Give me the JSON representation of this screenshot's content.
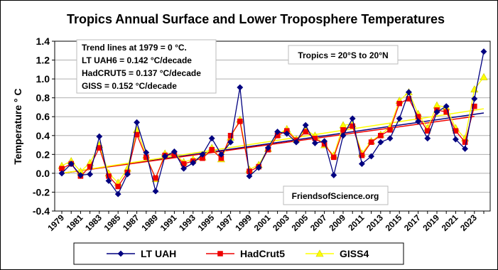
{
  "chart_data": {
    "type": "line",
    "title": "Tropics Annual Surface and Lower Troposphere Temperatures",
    "y_label": "Temperature  ° C",
    "annotations": [
      "Trend lines at 1979 = 0 °C.",
      "LT UAH6 = 0.142 °C/decade",
      "HadCRUT5 = 0.137 °C/decade",
      "GISS = 0.152 °C/decade"
    ],
    "region_note": "Tropics = 20°S to 20°N",
    "source": "FriendsofScience.org",
    "categories": [
      "1979",
      null,
      "1981",
      null,
      "1983",
      null,
      "1985",
      null,
      "1987",
      null,
      "1989",
      null,
      "1991",
      null,
      "1993",
      null,
      "1995",
      null,
      "1997",
      null,
      "1999",
      null,
      "2001",
      null,
      "2003",
      null,
      "2005",
      null,
      "2007",
      null,
      "2009",
      null,
      "2011",
      null,
      "2013",
      null,
      "2015",
      null,
      "2017",
      null,
      "2019",
      null,
      "2021",
      null,
      "2023",
      null
    ],
    "series": [
      {
        "name": "LT UAH",
        "color": "#000080",
        "marker": "diamond",
        "trend_per_decade": 0.142,
        "values": [
          0.0,
          0.1,
          -0.02,
          -0.01,
          0.39,
          -0.08,
          -0.22,
          -0.01,
          0.54,
          0.22,
          -0.19,
          0.18,
          0.23,
          0.05,
          0.11,
          0.2,
          0.37,
          0.2,
          0.33,
          0.91,
          -0.03,
          0.06,
          0.27,
          0.44,
          0.42,
          0.33,
          0.51,
          0.32,
          0.34,
          -0.02,
          0.4,
          0.58,
          0.1,
          0.18,
          0.33,
          0.37,
          0.58,
          0.86,
          0.55,
          0.37,
          0.65,
          0.71,
          0.36,
          0.26,
          0.79,
          1.29
        ]
      },
      {
        "name": "HadCrut5",
        "color": "#ee0000",
        "marker": "square",
        "trend_per_decade": 0.137,
        "values": [
          0.05,
          0.1,
          -0.03,
          0.07,
          0.27,
          -0.03,
          -0.14,
          0.01,
          0.41,
          0.17,
          -0.05,
          0.19,
          0.2,
          0.1,
          0.13,
          0.16,
          0.25,
          0.16,
          0.4,
          0.55,
          0.02,
          0.07,
          0.25,
          0.4,
          0.45,
          0.35,
          0.44,
          0.37,
          0.31,
          0.17,
          0.46,
          0.5,
          0.19,
          0.33,
          0.4,
          0.46,
          0.74,
          0.79,
          0.6,
          0.45,
          0.67,
          0.65,
          0.45,
          0.33,
          0.71,
          null
        ]
      },
      {
        "name": "GISS4",
        "color": "#ffff00",
        "marker": "triangle",
        "trend_per_decade": 0.152,
        "values": [
          0.08,
          0.13,
          0.02,
          0.11,
          0.3,
          0.0,
          -0.1,
          0.05,
          0.46,
          0.19,
          -0.06,
          0.21,
          0.21,
          0.12,
          0.15,
          0.17,
          0.27,
          0.15,
          0.38,
          0.57,
          0.04,
          0.09,
          0.26,
          0.41,
          0.47,
          0.36,
          0.46,
          0.4,
          0.3,
          0.19,
          0.51,
          0.52,
          0.21,
          0.34,
          0.41,
          0.49,
          0.77,
          0.86,
          0.63,
          0.48,
          0.72,
          0.7,
          0.48,
          0.37,
          0.89,
          1.02
        ]
      }
    ],
    "ylim": [
      -0.4,
      1.4
    ],
    "yticks": [
      -0.4,
      -0.2,
      {
        "value": 0,
        "label": "0.0"
      },
      0.2,
      0.4,
      0.6,
      0.8,
      {
        "value": 1,
        "label": "1.0"
      },
      1.2,
      1.4
    ],
    "grid": true
  }
}
